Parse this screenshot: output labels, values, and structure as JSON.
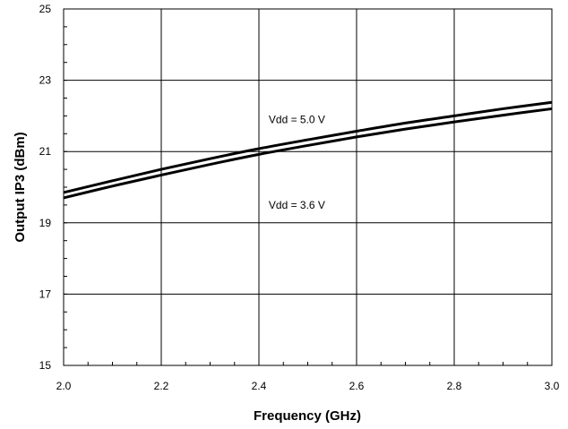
{
  "chart_data": {
    "type": "line",
    "title": "",
    "xlabel": "Frequency (GHz)",
    "ylabel": "Output IP3 (dBm)",
    "xlim": [
      2.0,
      3.0
    ],
    "ylim": [
      15,
      25
    ],
    "xticks": [
      2.0,
      2.2,
      2.4,
      2.6,
      2.8,
      3.0
    ],
    "xtick_labels": [
      "2.0",
      "2.2",
      "2.4",
      "2.6",
      "2.8",
      "3.0"
    ],
    "yticks": [
      15,
      17,
      19,
      21,
      23,
      25
    ],
    "ytick_labels": [
      "15",
      "17",
      "19",
      "21",
      "23",
      "25"
    ],
    "grid": true,
    "series": [
      {
        "x": [
          2.0,
          2.1,
          2.2,
          2.3,
          2.4,
          2.5,
          2.6,
          2.7,
          2.8,
          2.9,
          3.0
        ],
        "values": [
          19.85,
          20.18,
          20.5,
          20.8,
          21.08,
          21.33,
          21.57,
          21.8,
          22.0,
          22.2,
          22.38
        ]
      },
      {
        "x": [
          2.0,
          2.1,
          2.2,
          2.3,
          2.4,
          2.5,
          2.6,
          2.7,
          2.8,
          2.9,
          3.0
        ],
        "values": [
          19.7,
          20.03,
          20.34,
          20.64,
          20.92,
          21.17,
          21.41,
          21.63,
          21.83,
          22.02,
          22.2
        ]
      }
    ],
    "annotations": [
      {
        "text": "Vdd = 5.0 V",
        "x": 2.42,
        "y": 21.8
      },
      {
        "text": "Vdd = 3.6 V",
        "x": 2.42,
        "y": 19.4
      }
    ]
  }
}
